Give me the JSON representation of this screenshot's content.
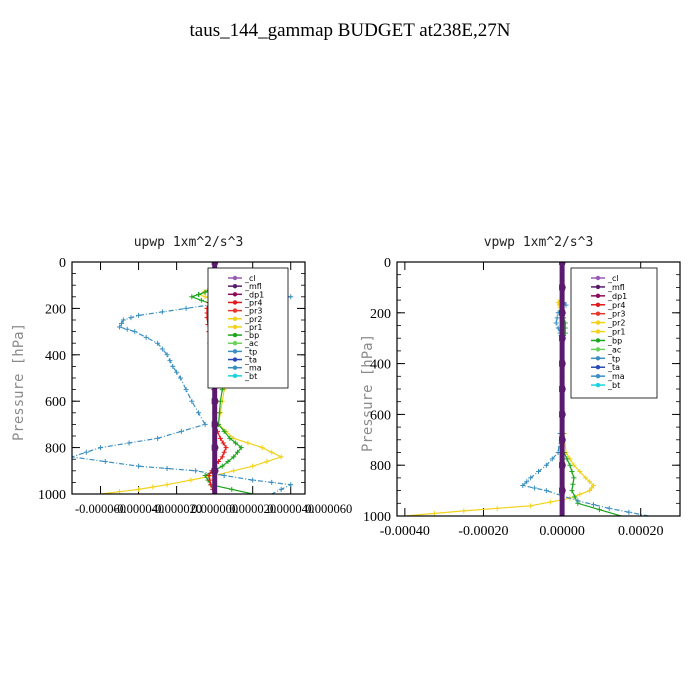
{
  "page_title": "taus_144_gammap  BUDGET at238E,27N",
  "chart_data": [
    {
      "type": "line",
      "title": "upwp  1xm^2/s^3",
      "ylabel": "Pressure [hPa]",
      "xlim": [
        -7.5e-05,
        4.75e-05
      ],
      "ylim": [
        1000,
        0
      ],
      "xticks": [
        "-0.000060",
        "-0.000040",
        "-0.000020",
        "0.000000",
        "0.000020",
        "0.000040",
        "0.000060"
      ],
      "xtick_values": [
        -6e-05,
        -4e-05,
        -2e-05,
        0.0,
        2e-05,
        4e-05,
        6e-05
      ],
      "yticks": [
        "0",
        "200",
        "400",
        "600",
        "800",
        "1000"
      ],
      "ytick_values": [
        0,
        200,
        400,
        600,
        800,
        1000
      ],
      "legend_position": "top-right",
      "legend": [
        "_cl",
        "_mfl",
        "_dp1",
        "_pr4",
        "_pr3",
        "_pr2",
        "_pr1",
        "_bp",
        "_ac",
        "_tp",
        "_ta",
        "_ma",
        "_bt"
      ],
      "series": [
        {
          "name": "_pr1",
          "color": "#f2d21a",
          "pressure": [
            0,
            100,
            120,
            140,
            160,
            200,
            250,
            300,
            350,
            400,
            500,
            600,
            700,
            760,
            800,
            840,
            880,
            920,
            960,
            980,
            1000
          ],
          "values": [
            0,
            0,
            -3e-06,
            -8e-06,
            -2e-06,
            4e-06,
            1.2e-05,
            1.6e-05,
            1.4e-05,
            1e-05,
            6e-06,
            4e-06,
            2e-06,
            1e-05,
            2.5e-05,
            3.5e-05,
            2e-05,
            0.0,
            -2.5e-05,
            -4e-05,
            -6e-05
          ]
        },
        {
          "name": "_bp",
          "color": "#1fa51f",
          "pressure": [
            0,
            100,
            130,
            150,
            180,
            200,
            250,
            300,
            350,
            400,
            500,
            600,
            700,
            760,
            800,
            840,
            880,
            920,
            960,
            1000
          ],
          "values": [
            0,
            0,
            -5e-06,
            -1.2e-05,
            -2e-06,
            8e-06,
            1.8e-05,
            2e-05,
            1.4e-05,
            8e-06,
            5e-06,
            3e-06,
            2e-06,
            8e-06,
            1.4e-05,
            1e-05,
            4e-06,
            -5e-06,
            -2e-06,
            2e-05
          ]
        },
        {
          "name": "_tp",
          "color": "#3a8fc0",
          "pressure": [
            0,
            110,
            130,
            150,
            170,
            200,
            230,
            250,
            280,
            300,
            350,
            400,
            450,
            500,
            600,
            700,
            760,
            800,
            840,
            880,
            900,
            940,
            960,
            1000
          ],
          "values": [
            0,
            0,
            2e-05,
            4e-05,
            1e-05,
            -1.5e-05,
            -4e-05,
            -4.8e-05,
            -5e-05,
            -4.2e-05,
            -3e-05,
            -2.5e-05,
            -2.2e-05,
            -1.8e-05,
            -1.2e-05,
            -5e-06,
            -3e-05,
            -6e-05,
            -7.5e-05,
            -4e-05,
            -1e-05,
            2e-05,
            4e-05,
            3e-05
          ]
        },
        {
          "name": "_pr4",
          "color": "#e21a1a",
          "pressure": [
            0,
            100,
            150,
            200,
            240,
            300,
            400,
            500,
            600,
            700,
            760,
            800,
            840,
            880,
            920,
            960,
            1000
          ],
          "values": [
            0,
            0,
            -2e-06,
            -4e-06,
            -4e-06,
            -3e-06,
            -2e-06,
            -1e-06,
            0,
            0,
            3e-06,
            6e-06,
            4e-06,
            0,
            -3e-06,
            -2e-06,
            0
          ]
        },
        {
          "name": "_dp1",
          "color": "#8b0a5a",
          "pressure": [
            0,
            200,
            400,
            600,
            800,
            1000
          ],
          "values": [
            5e-07,
            5e-07,
            5e-07,
            5e-07,
            5e-07,
            5e-07
          ]
        },
        {
          "name": "_mfl",
          "color": "#5a1a6e",
          "pressure": [
            0,
            200,
            400,
            600,
            800,
            1000
          ],
          "values": [
            0,
            0,
            0,
            0,
            0,
            0
          ]
        }
      ]
    },
    {
      "type": "line",
      "title": "vpwp  1xm^2/s^3",
      "ylabel": "Pressure [hPa]",
      "xlim": [
        -0.00042,
        0.0003
      ],
      "ylim": [
        1000,
        0
      ],
      "xticks": [
        "-0.00040",
        "-0.00020",
        "0.00000",
        "0.00020"
      ],
      "xtick_values": [
        -0.0004,
        -0.0002,
        0.0,
        0.0002
      ],
      "yticks": [
        "0",
        "200",
        "400",
        "600",
        "800",
        "1000"
      ],
      "ytick_values": [
        0,
        200,
        400,
        600,
        800,
        1000
      ],
      "legend_position": "top-right",
      "legend": [
        "_cl",
        "_mfl",
        "_dp1",
        "_pr4",
        "_pr3",
        "_pr2",
        "_pr1",
        "_bp",
        "_ac",
        "_tp",
        "_ta",
        "_ma",
        "_bt"
      ],
      "series": [
        {
          "name": "_pr1",
          "color": "#f2d21a",
          "pressure": [
            0,
            140,
            160,
            180,
            200,
            250,
            300,
            600,
            750,
            800,
            850,
            880,
            900,
            930,
            960,
            980,
            1000
          ],
          "values": [
            0,
            0,
            -1e-05,
            -5e-06,
            0,
            0,
            0,
            0,
            1e-05,
            3e-05,
            6e-05,
            8e-05,
            7e-05,
            2e-05,
            -8e-05,
            -0.00025,
            -0.0004
          ]
        },
        {
          "name": "_bp",
          "color": "#1fa51f",
          "pressure": [
            0,
            200,
            240,
            280,
            300,
            600,
            750,
            800,
            850,
            900,
            950,
            1000
          ],
          "values": [
            0,
            0,
            8e-06,
            8e-06,
            0,
            0,
            5e-06,
            2e-05,
            3e-05,
            2.5e-05,
            4e-05,
            0.00015
          ]
        },
        {
          "name": "_tp",
          "color": "#3a8fc0",
          "pressure": [
            0,
            150,
            170,
            200,
            240,
            280,
            300,
            600,
            750,
            800,
            850,
            880,
            900,
            940,
            970,
            1000
          ],
          "values": [
            0,
            0,
            1e-05,
            -1e-05,
            -1.5e-05,
            -5e-06,
            0,
            0,
            -1e-05,
            -4e-05,
            -8e-05,
            -0.0001,
            -4e-05,
            4e-05,
            0.00012,
            0.00022
          ]
        },
        {
          "name": "_dp1",
          "color": "#8b0a5a",
          "pressure": [
            0,
            200,
            400,
            600,
            800,
            1000
          ],
          "values": [
            2e-06,
            2e-06,
            2e-06,
            2e-06,
            2e-06,
            2e-06
          ]
        },
        {
          "name": "_mfl",
          "color": "#5a1a6e",
          "pressure": [
            0,
            200,
            400,
            600,
            800,
            1000
          ],
          "values": [
            0,
            0,
            0,
            0,
            0,
            0
          ]
        }
      ]
    }
  ],
  "legend_colors": {
    "_cl": "#9b59b6",
    "_mfl": "#5a1a6e",
    "_dp1": "#8b0a5a",
    "_pr4": "#e21a1a",
    "_pr3": "#e8342a",
    "_pr2": "#f2d21a",
    "_pr1": "#f2d21a",
    "_bp": "#1fa51f",
    "_ac": "#6ad15a",
    "_tp": "#3a8fc0",
    "_ta": "#2a4ab5",
    "_ma": "#3a8fc0",
    "_bt": "#19d2e0"
  }
}
